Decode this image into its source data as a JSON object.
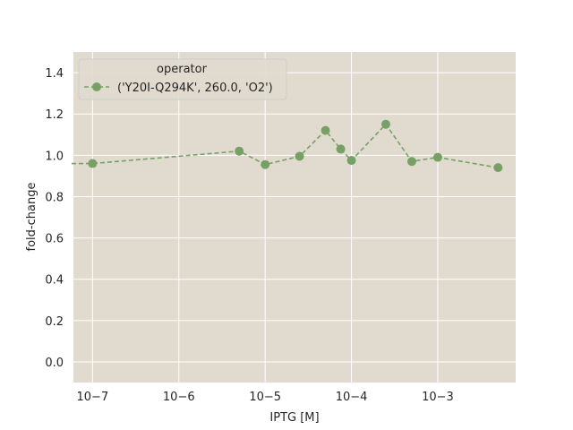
{
  "chart_data": {
    "type": "line",
    "xlabel": "IPTG [M]",
    "ylabel": "fold-change",
    "xscale": "log",
    "xlim": [
      6e-08,
      0.008
    ],
    "ylim": [
      -0.1,
      1.5
    ],
    "x_ticks": [
      {
        "value": 1e-07,
        "label": "10−7"
      },
      {
        "value": 1e-06,
        "label": "10−6"
      },
      {
        "value": 1e-05,
        "label": "10−5"
      },
      {
        "value": 0.0001,
        "label": "10−4"
      },
      {
        "value": 0.001,
        "label": "10−3"
      }
    ],
    "y_ticks": [
      0.0,
      0.2,
      0.4,
      0.6,
      0.8,
      1.0,
      1.2,
      1.4
    ],
    "y_tick_labels": [
      "0.0",
      "0.2",
      "0.4",
      "0.6",
      "0.8",
      "1.0",
      "1.2",
      "1.4"
    ],
    "grid": true,
    "legend": {
      "title": "operator",
      "placement": "top-left"
    },
    "series": [
      {
        "name": "('Y20I-Q294K', 260.0, 'O2')",
        "color": "#77a067",
        "line_style": "dashed",
        "marker": "circle",
        "x": [
          0,
          1e-07,
          5e-06,
          1e-05,
          2.5e-05,
          5e-05,
          7.5e-05,
          0.0001,
          0.00025,
          0.0005,
          0.001,
          0.005
        ],
        "y": [
          0.96,
          0.96,
          1.02,
          0.955,
          0.995,
          1.12,
          1.03,
          0.975,
          1.15,
          0.97,
          0.99,
          0.94
        ]
      }
    ],
    "background_color": "#e1dbcf",
    "grid_color": "#ffffff"
  }
}
